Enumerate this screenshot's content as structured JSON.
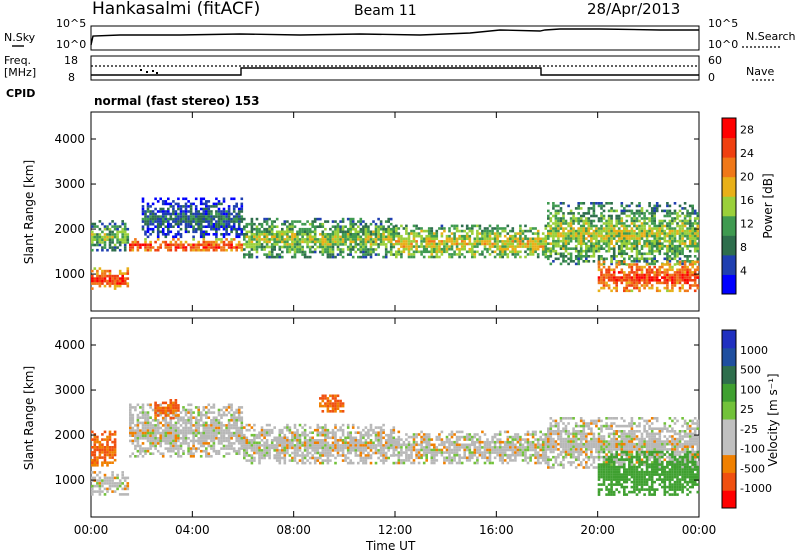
{
  "header": {
    "station": "Hankasalmi (fitACF)",
    "beam": "Beam 11",
    "date": "28/Apr/2013"
  },
  "noise_panel": {
    "left_label": "N.Sky",
    "right_label": "N.Search",
    "left_ticks": [
      "10^5",
      "10^0"
    ],
    "right_ticks": [
      "10^5",
      "10^0"
    ]
  },
  "freq_panel": {
    "left_label_1": "Freq.",
    "left_label_2": "[MHz]",
    "right_label": "Nave",
    "left_ticks": [
      "18",
      "8"
    ],
    "right_ticks": [
      "60",
      "0"
    ]
  },
  "cpid": {
    "label": "CPID",
    "mode": "normal (fast stereo) 153"
  },
  "colors": {
    "power_scale": [
      "#0000ff",
      "#1f3fb0",
      "#2e6e4c",
      "#3f9a50",
      "#9ad03a",
      "#e8b018",
      "#f07818",
      "#f04010",
      "#ff0000"
    ],
    "velocity_scale": [
      "#2030c0",
      "#1f4f9f",
      "#2e6e4c",
      "#3fa030",
      "#72c23a",
      "#c0c0c0",
      "#c0c0c0",
      "#f08000",
      "#f05010",
      "#ff0000"
    ],
    "ground_scatter": "#b8b8b8"
  },
  "chart_data": [
    {
      "type": "heatmap",
      "title": "Power",
      "xlabel": "Time UT",
      "ylabel": "Slant Range [km]",
      "x_ticks": [
        "00:00",
        "04:00",
        "08:00",
        "12:00",
        "16:00",
        "20:00",
        "00:00"
      ],
      "xlim_hours": [
        0,
        24
      ],
      "y_ticks": [
        1000,
        2000,
        3000,
        4000
      ],
      "ylim_km": [
        180,
        4600
      ],
      "colorbar": {
        "label": "Power [dB]",
        "ticks": [
          4,
          8,
          12,
          16,
          20,
          24,
          28
        ],
        "range": [
          0,
          30
        ]
      },
      "echo_bands": [
        {
          "hours": [
            0.0,
            1.5
          ],
          "range_km": [
            650,
            1150
          ],
          "power_db": 27
        },
        {
          "hours": [
            0.0,
            1.5
          ],
          "range_km": [
            1500,
            2200
          ],
          "power_db": 14
        },
        {
          "hours": [
            1.5,
            6.0
          ],
          "range_km": [
            1500,
            1800
          ],
          "power_db": 27
        },
        {
          "hours": [
            2.0,
            6.0
          ],
          "range_km": [
            1800,
            2700
          ],
          "power_db": 8
        },
        {
          "hours": [
            6.0,
            12.0
          ],
          "range_km": [
            1350,
            2250
          ],
          "power_db": 15
        },
        {
          "hours": [
            12.0,
            18.0
          ],
          "range_km": [
            1350,
            2100
          ],
          "power_db": 18
        },
        {
          "hours": [
            18.0,
            24.0
          ],
          "range_km": [
            1200,
            2600
          ],
          "power_db": 16
        },
        {
          "hours": [
            20.0,
            24.0
          ],
          "range_km": [
            600,
            1300
          ],
          "power_db": 27
        }
      ]
    },
    {
      "type": "heatmap",
      "title": "Velocity",
      "xlabel": "Time UT",
      "ylabel": "Slant Range [km]",
      "x_ticks": [
        "00:00",
        "04:00",
        "08:00",
        "12:00",
        "16:00",
        "20:00",
        "00:00"
      ],
      "xlim_hours": [
        0,
        24
      ],
      "y_ticks": [
        1000,
        2000,
        3000,
        4000
      ],
      "ylim_km": [
        180,
        4600
      ],
      "colorbar": {
        "label": "Velocity [m s⁻¹]",
        "ticks": [
          1000,
          500,
          100,
          25,
          -25,
          -100,
          -500,
          -1000
        ]
      },
      "echo_bands": [
        {
          "hours": [
            0.0,
            1.5
          ],
          "range_km": [
            650,
            1200
          ],
          "velocity": 0
        },
        {
          "hours": [
            0.0,
            1.0
          ],
          "range_km": [
            1300,
            2100
          ],
          "velocity": -300
        },
        {
          "hours": [
            1.5,
            6.0
          ],
          "range_km": [
            1500,
            2700
          ],
          "velocity": 0
        },
        {
          "hours": [
            2.5,
            3.5
          ],
          "range_km": [
            2350,
            2800
          ],
          "velocity": -300
        },
        {
          "hours": [
            6.0,
            12.0
          ],
          "range_km": [
            1350,
            2250
          ],
          "velocity": 0
        },
        {
          "hours": [
            9.0,
            10.0
          ],
          "range_km": [
            2500,
            2900
          ],
          "velocity": -300
        },
        {
          "hours": [
            12.0,
            18.0
          ],
          "range_km": [
            1350,
            2100
          ],
          "velocity": 0
        },
        {
          "hours": [
            18.0,
            24.0
          ],
          "range_km": [
            1250,
            2400
          ],
          "velocity": 0
        },
        {
          "hours": [
            20.0,
            24.0
          ],
          "range_km": [
            650,
            1650
          ],
          "velocity": 200
        }
      ]
    }
  ]
}
